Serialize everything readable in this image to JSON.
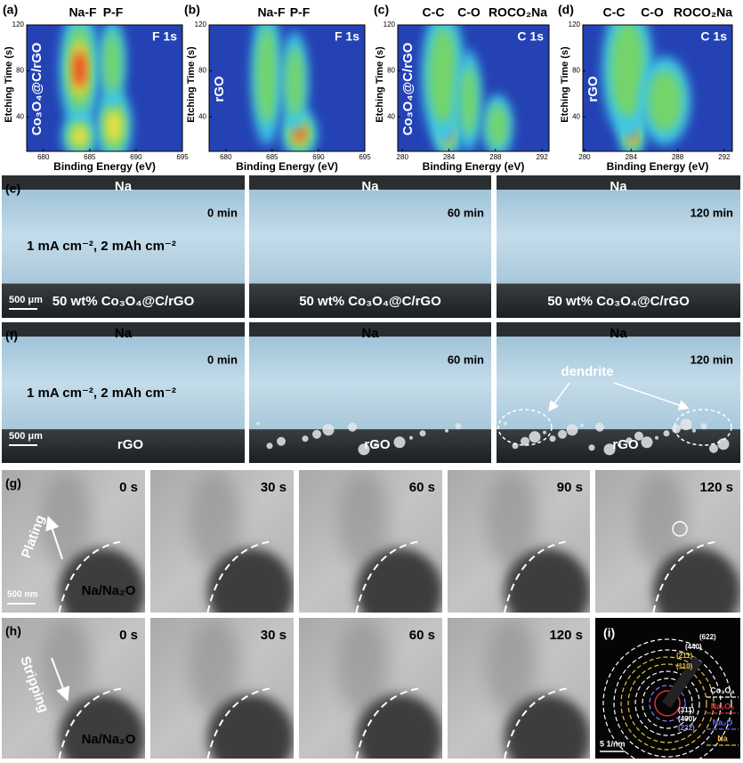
{
  "xps_panels": [
    {
      "label": "(a)",
      "peaks": [
        "Na-F",
        "P-F"
      ],
      "core_level": "F 1s",
      "sample": "Co₃O₄@C/rGO",
      "y_axis_label": "Etching Time (s)",
      "x_axis_label": "Binding Energy (eV)",
      "xlim": [
        678.2,
        695
      ],
      "xticks": [
        680,
        685,
        690,
        695
      ],
      "ylim": [
        10,
        120
      ],
      "yticks": [
        40,
        80,
        120
      ]
    },
    {
      "label": "(b)",
      "peaks": [
        "Na-F",
        "P-F"
      ],
      "core_level": "F 1s",
      "sample": "rGO",
      "y_axis_label": "Etching Time (s)",
      "x_axis_label": "Binding Energy (eV)",
      "xlim": [
        678.2,
        695
      ],
      "xticks": [
        680,
        685,
        690,
        695
      ],
      "ylim": [
        10,
        120
      ],
      "yticks": [
        40,
        80,
        120
      ]
    },
    {
      "label": "(c)",
      "peaks": [
        "C-C",
        "C-O",
        "ROCO₂Na"
      ],
      "core_level": "C 1s",
      "sample": "Co₃O₄@C/rGO",
      "y_axis_label": "Etching Time (s)",
      "x_axis_label": "Binding Energy (eV)",
      "xlim": [
        279.6,
        292.6
      ],
      "xticks": [
        280,
        284,
        288,
        292
      ],
      "ylim": [
        10,
        120
      ],
      "yticks": [
        40,
        80,
        120
      ]
    },
    {
      "label": "(d)",
      "peaks": [
        "C-C",
        "C-O",
        "ROCO₂Na"
      ],
      "core_level": "C 1s",
      "sample": "rGO",
      "y_axis_label": "Etching Time (s)",
      "x_axis_label": "Binding Energy (eV)",
      "xlim": [
        279.85,
        292.7
      ],
      "xticks": [
        280,
        284,
        288,
        292
      ],
      "ylim": [
        10,
        120
      ],
      "yticks": [
        40,
        80,
        120
      ]
    }
  ],
  "optical_rows": [
    {
      "label": "(e)",
      "condition": "1 mA cm⁻², 2 mAh cm⁻²",
      "scale_bar": "500 μm",
      "frames": [
        {
          "electrode": "Na",
          "time": "0 min",
          "substrate": "50 wt% Co₃O₄@C/rGO"
        },
        {
          "electrode": "Na",
          "time": "60 min",
          "substrate": "50 wt% Co₃O₄@C/rGO"
        },
        {
          "electrode": "Na",
          "time": "120 min",
          "substrate": "50 wt% Co₃O₄@C/rGO"
        }
      ]
    },
    {
      "label": "(f)",
      "condition": "1 mA cm⁻², 2 mAh cm⁻²",
      "scale_bar": "500 μm",
      "annotation": "dendrite",
      "frames": [
        {
          "electrode": "Na",
          "time": "0 min",
          "substrate": "rGO"
        },
        {
          "electrode": "Na",
          "time": "60 min",
          "substrate": "rGO"
        },
        {
          "electrode": "Na",
          "time": "120 min",
          "substrate": "rGO"
        }
      ]
    }
  ],
  "tem_rows": [
    {
      "label": "(g)",
      "process": "Plating",
      "material": "Na/Na₂O",
      "scale_bar": "500 nm",
      "frames": [
        "0 s",
        "30 s",
        "60 s",
        "90 s",
        "120 s"
      ]
    },
    {
      "label": "(h)",
      "process": "Stripping",
      "material": "Na/Na₂O",
      "frames": [
        "0 s",
        "30 s",
        "60 s",
        "120 s"
      ]
    }
  ],
  "diffraction": {
    "label": "(i)",
    "rings": [
      "(622)",
      "(440)",
      "(211)",
      "(110)",
      "(311)",
      "(400)",
      "(222)"
    ],
    "legend": [
      "Co₃O₄",
      "Na₂O₂",
      "Na₂O",
      "Na"
    ],
    "scale_bar": "5 1/nm"
  }
}
